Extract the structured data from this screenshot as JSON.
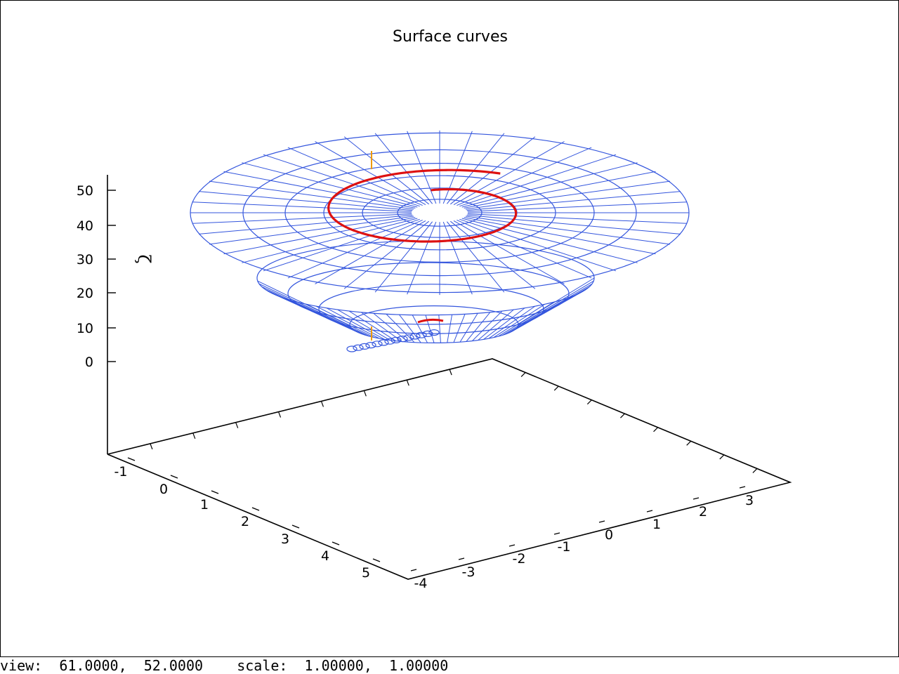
{
  "chart_data": {
    "type": "surface3d",
    "title": "Surface  curves",
    "zlabel": "ζ",
    "z_ticks": [
      "50",
      "40",
      "30",
      "20",
      "10",
      "0"
    ],
    "x_ticks": [
      "-1",
      "0",
      "1",
      "2",
      "3",
      "4",
      "5"
    ],
    "y_ticks": [
      "-4",
      "-3",
      "-2",
      "-1",
      "0",
      "1",
      "2",
      "3"
    ],
    "grid": false,
    "colors": {
      "surface": "#3355dd",
      "curve": "#dd1111",
      "segment": "#ee9900",
      "axes": "#000000"
    }
  },
  "status": {
    "view_label": "view:",
    "view_rot_x": "61.0000,",
    "view_rot_z": "52.0000",
    "scale_label": "scale:",
    "scale_1": "1.00000,",
    "scale_2": "1.00000"
  }
}
